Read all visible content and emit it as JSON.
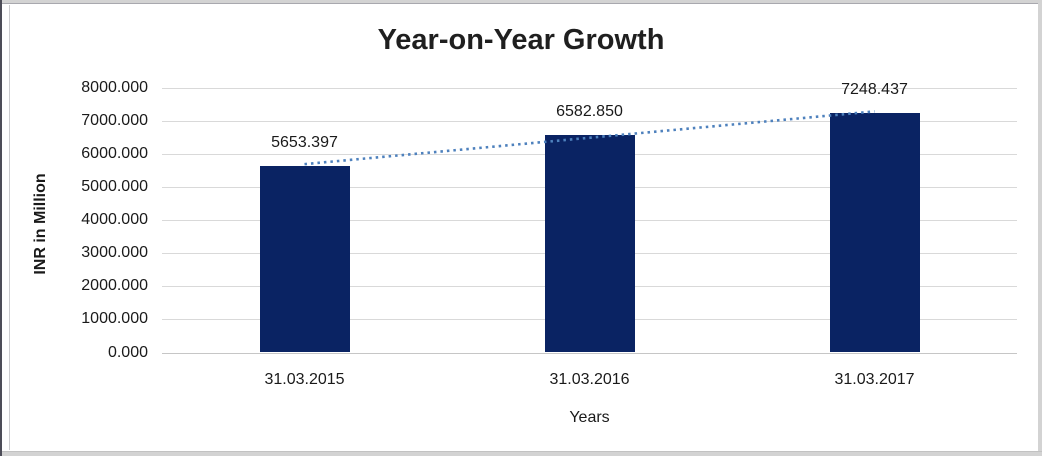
{
  "chart_data": {
    "type": "bar",
    "title": "Year-on-Year Growth",
    "xlabel": "Years",
    "ylabel": "INR in Million",
    "categories": [
      "31.03.2015",
      "31.03.2016",
      "31.03.2017"
    ],
    "values": [
      5653.397,
      6582.85,
      7248.437
    ],
    "data_labels": [
      "5653.397",
      "6582.850",
      "7248.437"
    ],
    "ylim": [
      0,
      8000
    ],
    "ytick_step": 1000,
    "ytick_labels": [
      "0.000",
      "1000.000",
      "2000.000",
      "3000.000",
      "4000.000",
      "5000.000",
      "6000.000",
      "7000.000",
      "8000.000"
    ],
    "grid": true,
    "legend_position": "none",
    "bar_color": "#0A2363",
    "trendline": {
      "type": "linear",
      "style": "dotted",
      "color": "#4E81BD",
      "fit_endpoint_values": [
        5697.375,
        7292.415
      ]
    }
  }
}
